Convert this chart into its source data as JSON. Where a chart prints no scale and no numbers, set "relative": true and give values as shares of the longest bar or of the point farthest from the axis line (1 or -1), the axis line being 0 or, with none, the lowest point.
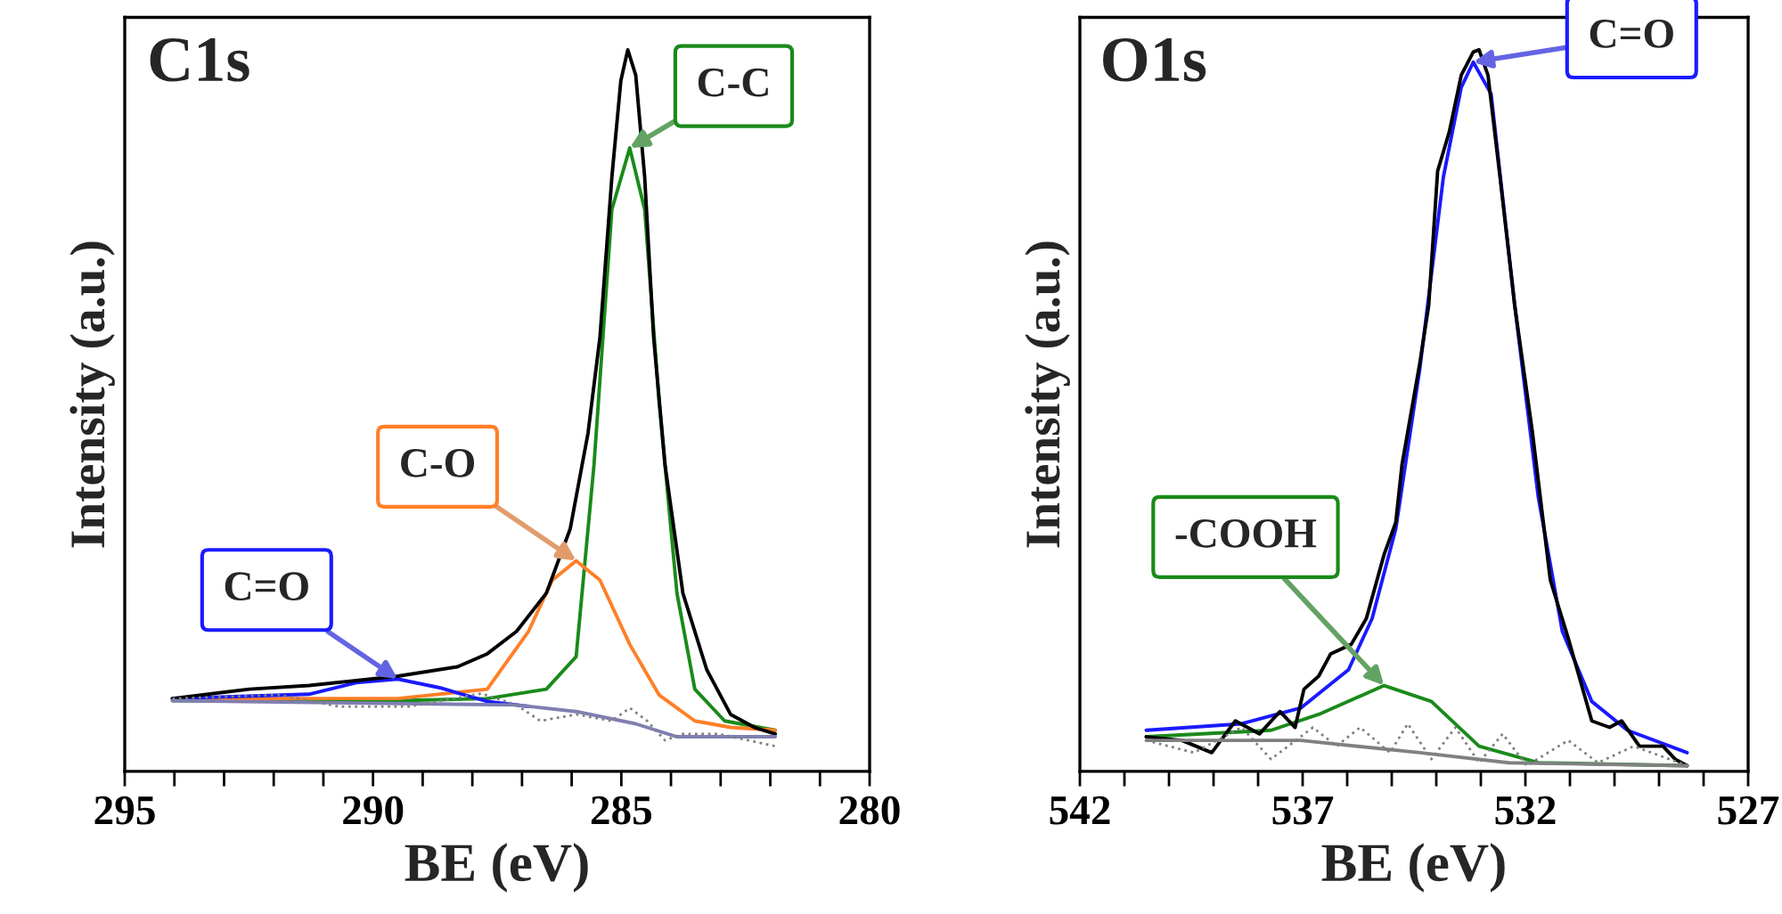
{
  "chart_data": [
    {
      "type": "line",
      "title": "C1s",
      "xlabel": "BE (eV)",
      "ylabel": "Intensity (a.u.)",
      "relative": true,
      "tick_labels": "x",
      "grid": false,
      "xlim": [
        295,
        280
      ],
      "xticks": [
        295,
        {
          "value": 294,
          "label": null
        },
        {
          "value": 293,
          "label": null
        },
        {
          "value": 292,
          "label": null
        },
        {
          "value": 291,
          "label": null
        },
        290,
        {
          "value": 289,
          "label": null
        },
        {
          "value": 288,
          "label": null
        },
        {
          "value": 287,
          "label": null
        },
        {
          "value": 286,
          "label": null
        },
        285,
        {
          "value": 284,
          "label": null
        },
        {
          "value": 283,
          "label": null
        },
        {
          "value": 282,
          "label": null
        },
        {
          "value": 281,
          "label": null
        },
        280
      ],
      "series": [
        {
          "color": "#1a8a1a",
          "x": [
            294.04,
            289.5,
            287.7,
            286.51,
            285.91,
            285.55,
            285.19,
            284.83,
            284.53,
            284.24,
            283.88,
            283.52,
            282.92,
            281.9
          ],
          "values": [
            0.098,
            0.098,
            0.101,
            0.114,
            0.159,
            0.425,
            0.779,
            0.864,
            0.779,
            0.513,
            0.247,
            0.114,
            0.07,
            0.057
          ]
        },
        {
          "color": "#ff7f27",
          "x": [
            294.04,
            289.5,
            287.7,
            286.87,
            286.39,
            285.91,
            285.43,
            284.83,
            284.24,
            283.52,
            282.8,
            281.9
          ],
          "values": [
            0.101,
            0.101,
            0.114,
            0.194,
            0.265,
            0.292,
            0.265,
            0.176,
            0.106,
            0.07,
            0.061,
            0.057
          ]
        },
        {
          "color": "#1a1aff",
          "x": [
            294.04,
            291.29,
            290.34,
            289.5,
            288.66,
            287.7,
            286.87
          ],
          "values": [
            0.101,
            0.107,
            0.123,
            0.128,
            0.116,
            0.097,
            0.09
          ]
        },
        {
          "color": "#000000",
          "x": [
            294.04,
            292.49,
            291.29,
            289.5,
            288.3,
            287.7,
            287.11,
            286.51,
            286.03,
            285.67,
            285.43,
            285.19,
            285.01,
            284.87,
            284.71,
            284.53,
            284.35,
            284.12,
            283.76,
            283.28,
            282.8,
            282.32,
            281.9
          ],
          "values": [
            0.101,
            0.114,
            0.119,
            0.132,
            0.145,
            0.163,
            0.194,
            0.247,
            0.336,
            0.469,
            0.602,
            0.824,
            0.957,
            1.0,
            0.965,
            0.824,
            0.602,
            0.425,
            0.247,
            0.141,
            0.079,
            0.061,
            0.052
          ]
        },
        {
          "color": "#7f7fb2",
          "x": [
            294.04,
            287.11,
            285.91,
            284.71,
            283.88,
            281.9
          ],
          "values": [
            0.098,
            0.092,
            0.083,
            0.066,
            0.048,
            0.048
          ]
        },
        {
          "color": "#808080",
          "line_style": "dotted",
          "x": [
            294.04,
            291.89,
            290.69,
            289.26,
            287.82,
            287.11,
            286.63,
            285.91,
            285.19,
            284.83,
            284.48,
            284.12,
            283.76,
            283.04,
            281.9
          ],
          "values": [
            0.101,
            0.106,
            0.09,
            0.09,
            0.108,
            0.092,
            0.07,
            0.079,
            0.07,
            0.088,
            0.07,
            0.043,
            0.052,
            0.052,
            0.035
          ]
        }
      ],
      "annotations": [
        {
          "text": "C-C",
          "x": 284.83,
          "y": 0.864
        },
        {
          "text": "C-O",
          "x": 285.91,
          "y": 0.292
        },
        {
          "text": "C=O",
          "x": 289.5,
          "y": 0.128
        }
      ]
    },
    {
      "type": "line",
      "title": "O1s",
      "xlabel": "BE (eV)",
      "ylabel": "Intensity (a.u.)",
      "relative": true,
      "tick_labels": "x",
      "grid": false,
      "xlim": [
        542,
        527
      ],
      "xticks": [
        542,
        {
          "value": 541,
          "label": null
        },
        {
          "value": 540,
          "label": null
        },
        {
          "value": 539,
          "label": null
        },
        {
          "value": 538,
          "label": null
        },
        537,
        {
          "value": 536,
          "label": null
        },
        {
          "value": 535,
          "label": null
        },
        {
          "value": 534,
          "label": null
        },
        {
          "value": 533,
          "label": null
        },
        532,
        {
          "value": 531,
          "label": null
        },
        {
          "value": 530,
          "label": null
        },
        {
          "value": 529,
          "label": null
        },
        {
          "value": 528,
          "label": null
        },
        527
      ],
      "series": [
        {
          "color": "#1a1aff",
          "x": [
            540.51,
            538.37,
            537.04,
            535.97,
            535.44,
            534.91,
            534.37,
            533.84,
            533.44,
            533.17,
            532.77,
            532.24,
            531.71,
            531.17,
            530.51,
            529.71,
            528.37
          ],
          "values": [
            0.057,
            0.066,
            0.088,
            0.141,
            0.212,
            0.336,
            0.558,
            0.824,
            0.948,
            0.983,
            0.939,
            0.646,
            0.38,
            0.194,
            0.097,
            0.057,
            0.026
          ]
        },
        {
          "color": "#1a8a1a",
          "x": [
            540.51,
            537.71,
            536.64,
            535.17,
            534.11,
            533.04,
            531.71,
            528.37
          ],
          "values": [
            0.048,
            0.057,
            0.079,
            0.119,
            0.097,
            0.035,
            0.012,
            0.008
          ]
        },
        {
          "color": "#000000",
          "x": [
            540.51,
            539.71,
            539.04,
            538.51,
            537.97,
            537.51,
            537.17,
            536.97,
            536.64,
            536.37,
            535.91,
            535.57,
            535.17,
            534.91,
            534.77,
            534.37,
            534.17,
            533.97,
            533.71,
            533.44,
            533.17,
            533.04,
            532.84,
            532.57,
            532.24,
            531.84,
            531.44,
            531.04,
            530.51,
            530.11,
            529.84,
            529.44,
            528.91,
            528.64,
            528.37
          ],
          "values": [
            0.048,
            0.043,
            0.026,
            0.07,
            0.052,
            0.083,
            0.061,
            0.114,
            0.132,
            0.163,
            0.176,
            0.212,
            0.301,
            0.345,
            0.425,
            0.566,
            0.646,
            0.832,
            0.886,
            0.965,
            0.997,
            1.0,
            0.965,
            0.824,
            0.646,
            0.469,
            0.265,
            0.185,
            0.07,
            0.061,
            0.07,
            0.035,
            0.035,
            0.017,
            0.008
          ]
        },
        {
          "color": "#808080",
          "x": [
            540.51,
            537.04,
            534.37,
            532.37,
            528.37
          ],
          "values": [
            0.043,
            0.043,
            0.026,
            0.012,
            0.008
          ]
        },
        {
          "color": "#808080",
          "line_style": "dotted",
          "x": [
            540.51,
            539.44,
            538.37,
            537.71,
            536.77,
            536.24,
            535.71,
            535.04,
            534.64,
            534.11,
            533.57,
            533.04,
            532.51,
            531.97,
            531.04,
            530.37,
            529.57,
            528.37
          ],
          "values": [
            0.043,
            0.026,
            0.061,
            0.017,
            0.061,
            0.035,
            0.061,
            0.026,
            0.066,
            0.017,
            0.061,
            0.012,
            0.052,
            0.008,
            0.043,
            0.012,
            0.035,
            0.008
          ]
        }
      ],
      "annotations": [
        {
          "text": "C=O",
          "x": 533.17,
          "y": 0.983
        },
        {
          "text": "-COOH",
          "x": 535.17,
          "y": 0.119
        }
      ]
    }
  ]
}
